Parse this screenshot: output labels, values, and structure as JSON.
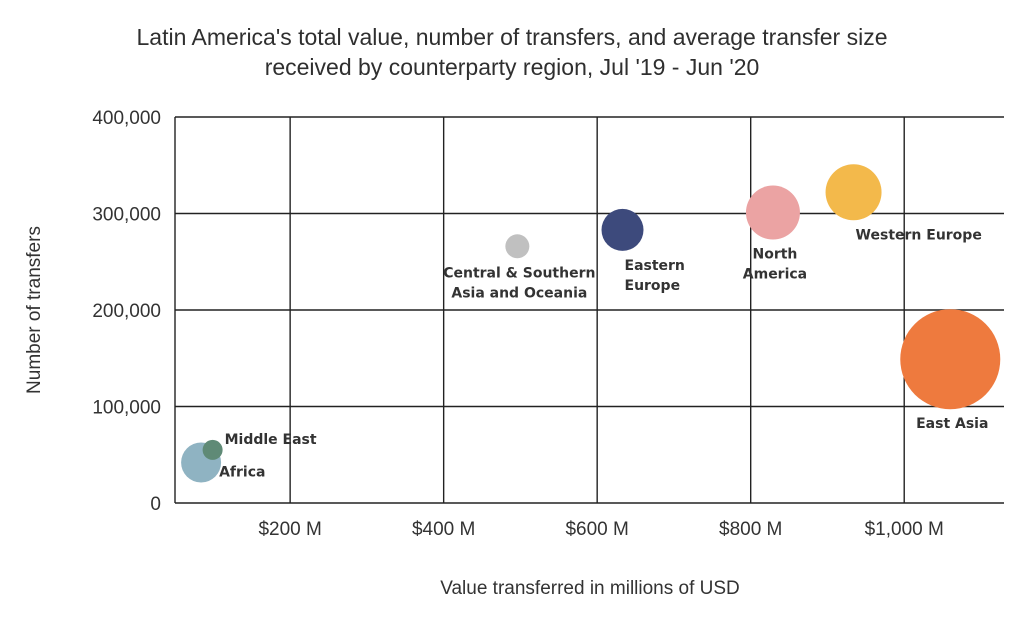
{
  "chart_data": {
    "type": "scatter",
    "title": "Latin America's total value, number of transfers, and average transfer size",
    "subtitle": "received by counterparty region, Jul '19 - Jun '20",
    "xlabel": "Value transferred in millions of USD",
    "ylabel": "Number of transfers",
    "xlim": [
      50,
      1130
    ],
    "ylim": [
      0,
      400000
    ],
    "x_ticks": [
      200,
      400,
      600,
      800,
      1000
    ],
    "x_tick_labels": [
      "$200 M",
      "$400 M",
      "$600 M",
      "$800 M",
      "$1,000 M"
    ],
    "y_ticks": [
      0,
      100000,
      200000,
      300000,
      400000
    ],
    "y_tick_labels": [
      "0",
      "100,000",
      "200,000",
      "300,000",
      "400,000"
    ],
    "grid": true,
    "points": [
      {
        "label": [
          "Africa"
        ],
        "x": 84,
        "y": 42000,
        "size": 2.0,
        "color": "#8fb3c2",
        "label_pos": "right-below"
      },
      {
        "label": [
          "Middle East"
        ],
        "x": 99,
        "y": 55000,
        "size": 1.0,
        "color": "#5f8a76",
        "label_pos": "right"
      },
      {
        "label": [
          "Central & Southern",
          "Asia and Oceania"
        ],
        "x": 496,
        "y": 266000,
        "size": 1.2,
        "color": "#c0c0c0",
        "label_pos": "below"
      },
      {
        "label": [
          "Eastern",
          "Europe"
        ],
        "x": 633,
        "y": 283000,
        "size": 2.1,
        "color": "#3d4a7c",
        "label_pos": "below-right"
      },
      {
        "label": [
          "North",
          "America"
        ],
        "x": 829,
        "y": 301000,
        "size": 2.7,
        "color": "#eba3a3",
        "label_pos": "below"
      },
      {
        "label": [
          "Western Europe"
        ],
        "x": 934,
        "y": 322000,
        "size": 2.8,
        "color": "#f3b94b",
        "label_pos": "below-right"
      },
      {
        "label": [
          "East Asia"
        ],
        "x": 1060,
        "y": 149000,
        "size": 5.0,
        "color": "#ee7a3e",
        "label_pos": "below"
      }
    ]
  }
}
